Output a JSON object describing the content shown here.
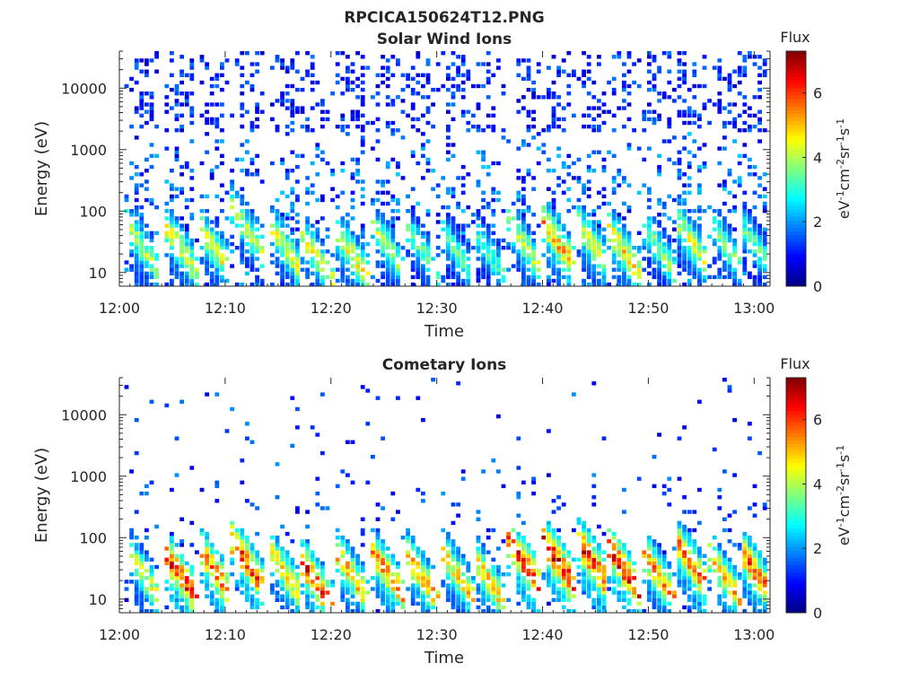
{
  "figure": {
    "title": "RPCICA150624T12.PNG"
  },
  "chart_data": [
    {
      "type": "heatmap",
      "title": "Solar Wind Ions",
      "xlabel": "Time",
      "ylabel": "Energy (eV)",
      "x_ticks": [
        "12:00",
        "12:10",
        "12:20",
        "12:30",
        "12:40",
        "12:50",
        "13:00"
      ],
      "x_range_minutes": [
        0,
        61.5
      ],
      "y_ticks": [
        "10",
        "100",
        "1000",
        "10000"
      ],
      "y_scale": "log",
      "ylim": [
        6,
        40000
      ],
      "colorbar": {
        "title": "Flux",
        "label": "eV-1cm-2sr-1s-1",
        "ticks": [
          "0",
          "2",
          "4",
          "6"
        ],
        "range": [
          0,
          7.3
        ],
        "colormap": "jet"
      },
      "sweeps_minutes": [
        2.3,
        5.8,
        9.0,
        12.3,
        15.8,
        18.5,
        22.0,
        25.5,
        28.5,
        32.0,
        35.0,
        38.5,
        41.5,
        45.0,
        47.5,
        51.0,
        54.0,
        57.5,
        60.0
      ],
      "peak_flux": [
        4.2,
        4.6,
        4.6,
        4.3,
        4.6,
        4.5,
        4.7,
        4.1,
        3.6,
        3.5,
        3.4,
        4.3,
        5.5,
        4.6,
        5.1,
        3.9,
        4.5,
        3.8,
        3.5
      ],
      "peak_energy_eV": [
        25,
        25,
        25,
        45,
        25,
        20,
        20,
        25,
        25,
        20,
        20,
        25,
        30,
        25,
        25,
        25,
        35,
        25,
        30
      ],
      "notes": "Core ~12-70 eV, scattered low-flux counts extending to ~30000 eV"
    },
    {
      "type": "heatmap",
      "title": "Cometary Ions",
      "xlabel": "Time",
      "ylabel": "Energy (eV)",
      "x_ticks": [
        "12:00",
        "12:10",
        "12:20",
        "12:30",
        "12:40",
        "12:50",
        "13:00"
      ],
      "x_range_minutes": [
        0,
        61.5
      ],
      "y_ticks": [
        "10",
        "100",
        "1000",
        "10000"
      ],
      "y_scale": "log",
      "ylim": [
        6,
        40000
      ],
      "colorbar": {
        "title": "Flux",
        "label": "eV-1cm-2sr-1s-1",
        "ticks": [
          "0",
          "2",
          "4",
          "6"
        ],
        "range": [
          0,
          7.3
        ],
        "colormap": "jet"
      },
      "sweeps_minutes": [
        2.3,
        5.8,
        9.0,
        12.3,
        15.8,
        18.5,
        22.0,
        25.5,
        28.5,
        32.0,
        35.0,
        38.5,
        41.5,
        45.0,
        47.5,
        51.0,
        54.0,
        57.5,
        60.0
      ],
      "peak_flux": [
        4.6,
        6.6,
        6.0,
        6.5,
        5.2,
        6.4,
        5.4,
        5.8,
        5.4,
        5.0,
        5.2,
        6.6,
        6.9,
        6.6,
        6.9,
        5.6,
        5.9,
        5.3,
        6.0
      ],
      "peak_energy_eV": [
        25,
        25,
        30,
        35,
        25,
        20,
        25,
        25,
        25,
        25,
        20,
        35,
        40,
        35,
        35,
        25,
        40,
        20,
        30
      ],
      "notes": "Core ~12-80 eV with high flux, sparse counts up to ~20000 eV"
    }
  ]
}
